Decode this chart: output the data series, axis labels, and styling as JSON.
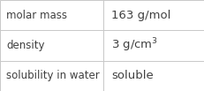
{
  "rows": [
    {
      "label": "molar mass",
      "value": "163 g/mol",
      "superscript": null
    },
    {
      "label": "density",
      "value": "3 g/cm",
      "superscript": "3"
    },
    {
      "label": "solubility in water",
      "value": "soluble",
      "superscript": null
    }
  ],
  "bg_color": "#ffffff",
  "border_color": "#c8c8c8",
  "text_color": "#404040",
  "label_fontsize": 8.5,
  "value_fontsize": 9.5,
  "col_split": 0.505,
  "figsize": [
    2.32,
    1.03
  ],
  "dpi": 100
}
